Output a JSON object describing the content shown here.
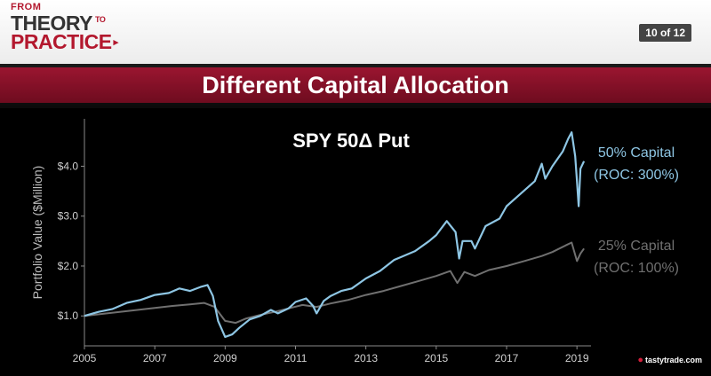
{
  "header": {
    "brand_from": "FROM",
    "brand_theory": "THEORY",
    "brand_to": "TO",
    "brand_practice": "PRACTICE",
    "slide_counter": "10 of 12"
  },
  "title": "Different Capital Allocation",
  "footer": {
    "logo_text": "tastytrade.com"
  },
  "colors": {
    "series_50": "#8ec6e4",
    "series_25": "#707070",
    "title_bar": "#8a1228",
    "brand_red": "#b3182e"
  },
  "chart_data": {
    "type": "line",
    "title": "SPY 50Δ Put",
    "xlabel": "",
    "ylabel": "Portfolio Value ($Million)",
    "xlim": [
      2005.0,
      2019.4
    ],
    "ylim": [
      0.4,
      4.95
    ],
    "x_ticks": [
      "2005",
      "2007",
      "2009",
      "2011",
      "2013",
      "2015",
      "2017",
      "2019"
    ],
    "y_ticks": [
      {
        "value": 1.0,
        "label": "$1.0"
      },
      {
        "value": 2.0,
        "label": "$2.0"
      },
      {
        "value": 3.0,
        "label": "$3.0"
      },
      {
        "value": 4.0,
        "label": "$4.0"
      }
    ],
    "series": [
      {
        "name": "50% Capital",
        "annotation": [
          "50% Capital",
          "(ROC: 300%)"
        ],
        "color": "#8ec6e4",
        "x": [
          2005.0,
          2005.4,
          2005.8,
          2006.2,
          2006.6,
          2007.0,
          2007.4,
          2007.7,
          2008.0,
          2008.3,
          2008.5,
          2008.65,
          2008.8,
          2009.0,
          2009.2,
          2009.4,
          2009.7,
          2010.0,
          2010.3,
          2010.5,
          2010.8,
          2011.0,
          2011.3,
          2011.5,
          2011.6,
          2011.8,
          2012.0,
          2012.3,
          2012.6,
          2013.0,
          2013.4,
          2013.8,
          2014.0,
          2014.4,
          2014.8,
          2015.0,
          2015.3,
          2015.55,
          2015.65,
          2015.75,
          2016.0,
          2016.1,
          2016.4,
          2016.8,
          2017.0,
          2017.4,
          2017.8,
          2018.0,
          2018.1,
          2018.3,
          2018.6,
          2018.75,
          2018.85,
          2018.95,
          2019.0,
          2019.05,
          2019.1,
          2019.2
        ],
        "y": [
          1.0,
          1.08,
          1.14,
          1.26,
          1.32,
          1.42,
          1.46,
          1.55,
          1.5,
          1.58,
          1.62,
          1.4,
          0.9,
          0.58,
          0.63,
          0.76,
          0.93,
          1.0,
          1.12,
          1.05,
          1.15,
          1.28,
          1.35,
          1.2,
          1.05,
          1.3,
          1.4,
          1.5,
          1.55,
          1.75,
          1.9,
          2.12,
          2.18,
          2.3,
          2.5,
          2.62,
          2.9,
          2.68,
          2.15,
          2.5,
          2.5,
          2.35,
          2.8,
          2.95,
          3.2,
          3.45,
          3.7,
          4.05,
          3.75,
          4.0,
          4.3,
          4.55,
          4.68,
          4.2,
          3.7,
          3.2,
          3.95,
          4.1
        ]
      },
      {
        "name": "25% Capital",
        "annotation": [
          "25% Capital",
          "(ROC: 100%)"
        ],
        "color": "#707070",
        "x": [
          2005.0,
          2005.5,
          2006.0,
          2006.5,
          2007.0,
          2007.5,
          2008.0,
          2008.4,
          2008.7,
          2009.0,
          2009.3,
          2009.6,
          2010.0,
          2010.4,
          2010.8,
          2011.2,
          2011.6,
          2012.0,
          2012.5,
          2013.0,
          2013.5,
          2014.0,
          2014.5,
          2015.0,
          2015.4,
          2015.6,
          2015.8,
          2016.1,
          2016.5,
          2017.0,
          2017.5,
          2018.0,
          2018.3,
          2018.7,
          2018.85,
          2019.0,
          2019.1,
          2019.2
        ],
        "y": [
          1.0,
          1.04,
          1.08,
          1.12,
          1.16,
          1.2,
          1.23,
          1.26,
          1.18,
          0.9,
          0.86,
          0.95,
          1.02,
          1.08,
          1.15,
          1.22,
          1.18,
          1.25,
          1.32,
          1.42,
          1.5,
          1.6,
          1.7,
          1.8,
          1.9,
          1.66,
          1.88,
          1.8,
          1.92,
          2.0,
          2.1,
          2.2,
          2.28,
          2.42,
          2.47,
          2.1,
          2.25,
          2.35
        ]
      }
    ]
  }
}
